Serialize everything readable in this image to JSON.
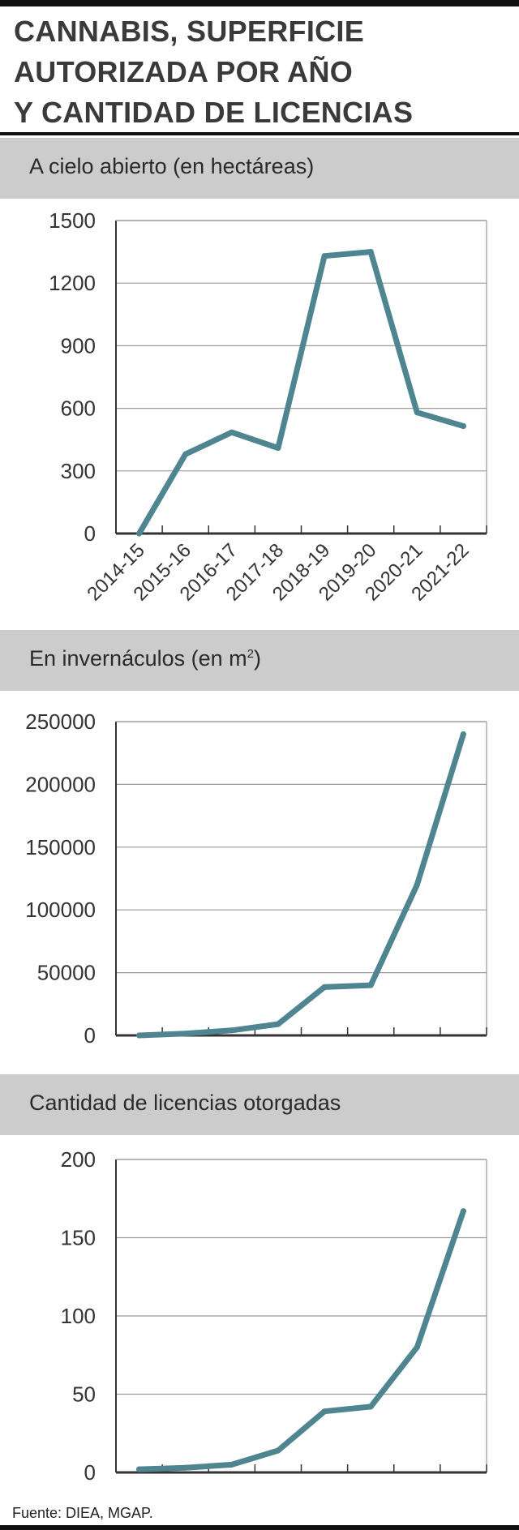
{
  "title_lines": [
    "CANNABIS, SUPERFICIE",
    "AUTORIZADA POR AÑO",
    "Y CANTIDAD DE LICENCIAS"
  ],
  "source": "Fuente: DIEA, MGAP.",
  "colors": {
    "line": "#4e8591",
    "band": "#cccccc",
    "grid": "#9a9a9a",
    "axis": "#333333"
  },
  "chart_data": [
    {
      "type": "line",
      "title": "A cielo abierto (en hectáreas)",
      "categories": [
        "2014-15",
        "2015-16",
        "2016-17",
        "2017-18",
        "2018-19",
        "2019-20",
        "2020-21",
        "2021-22"
      ],
      "values": [
        0,
        380,
        485,
        410,
        1330,
        1350,
        580,
        515
      ],
      "ylim": [
        0,
        1500
      ],
      "yticks": [
        "0",
        "300",
        "600",
        "900",
        "1200",
        "1500"
      ],
      "grid": true
    },
    {
      "type": "line",
      "title": "En invernáculos (en m",
      "title_sup": "2",
      "title_end": ")",
      "categories": [
        "2014-15",
        "2015-16",
        "2016-17",
        "2017-18",
        "2018-19",
        "2019-20",
        "2020-21",
        "2021-22"
      ],
      "values": [
        0,
        1500,
        4000,
        9000,
        38500,
        40000,
        120000,
        240000
      ],
      "ylim": [
        0,
        250000
      ],
      "yticks": [
        "0",
        "50000",
        "100000",
        "150000",
        "200000",
        "250000"
      ],
      "grid": true
    },
    {
      "type": "line",
      "title": "Cantidad de licencias otorgadas",
      "categories": [
        "2014-15",
        "2015-16",
        "2016-17",
        "2017-18",
        "2018-19",
        "2019-20",
        "2020-21",
        "2021-22"
      ],
      "values": [
        2,
        3,
        5,
        14,
        39,
        42,
        80,
        167
      ],
      "ylim": [
        0,
        200
      ],
      "yticks": [
        "0",
        "50",
        "100",
        "150",
        "200"
      ],
      "grid": true
    }
  ]
}
